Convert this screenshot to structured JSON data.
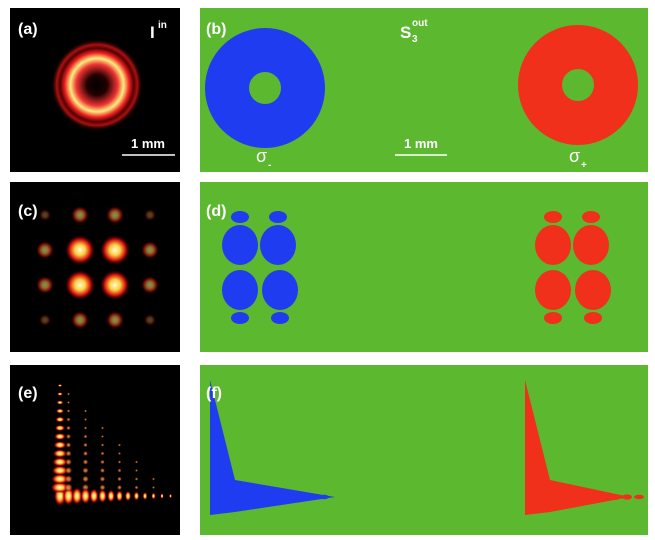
{
  "panels": [
    {
      "label": "(a)",
      "title": {
        "base": "I",
        "sup": "in"
      },
      "scale_bar": "1 mm"
    },
    {
      "label": "(b)",
      "title": {
        "base": "S",
        "sub": "3",
        "sup": "out"
      },
      "scale_bar": "1 mm",
      "spots": [
        {
          "base": "σ",
          "sub": "-"
        },
        {
          "base": "σ",
          "sub": "+"
        }
      ]
    },
    {
      "label": "(c)"
    },
    {
      "label": "(d)"
    },
    {
      "label": "(e)"
    },
    {
      "label": "(f)"
    }
  ]
}
